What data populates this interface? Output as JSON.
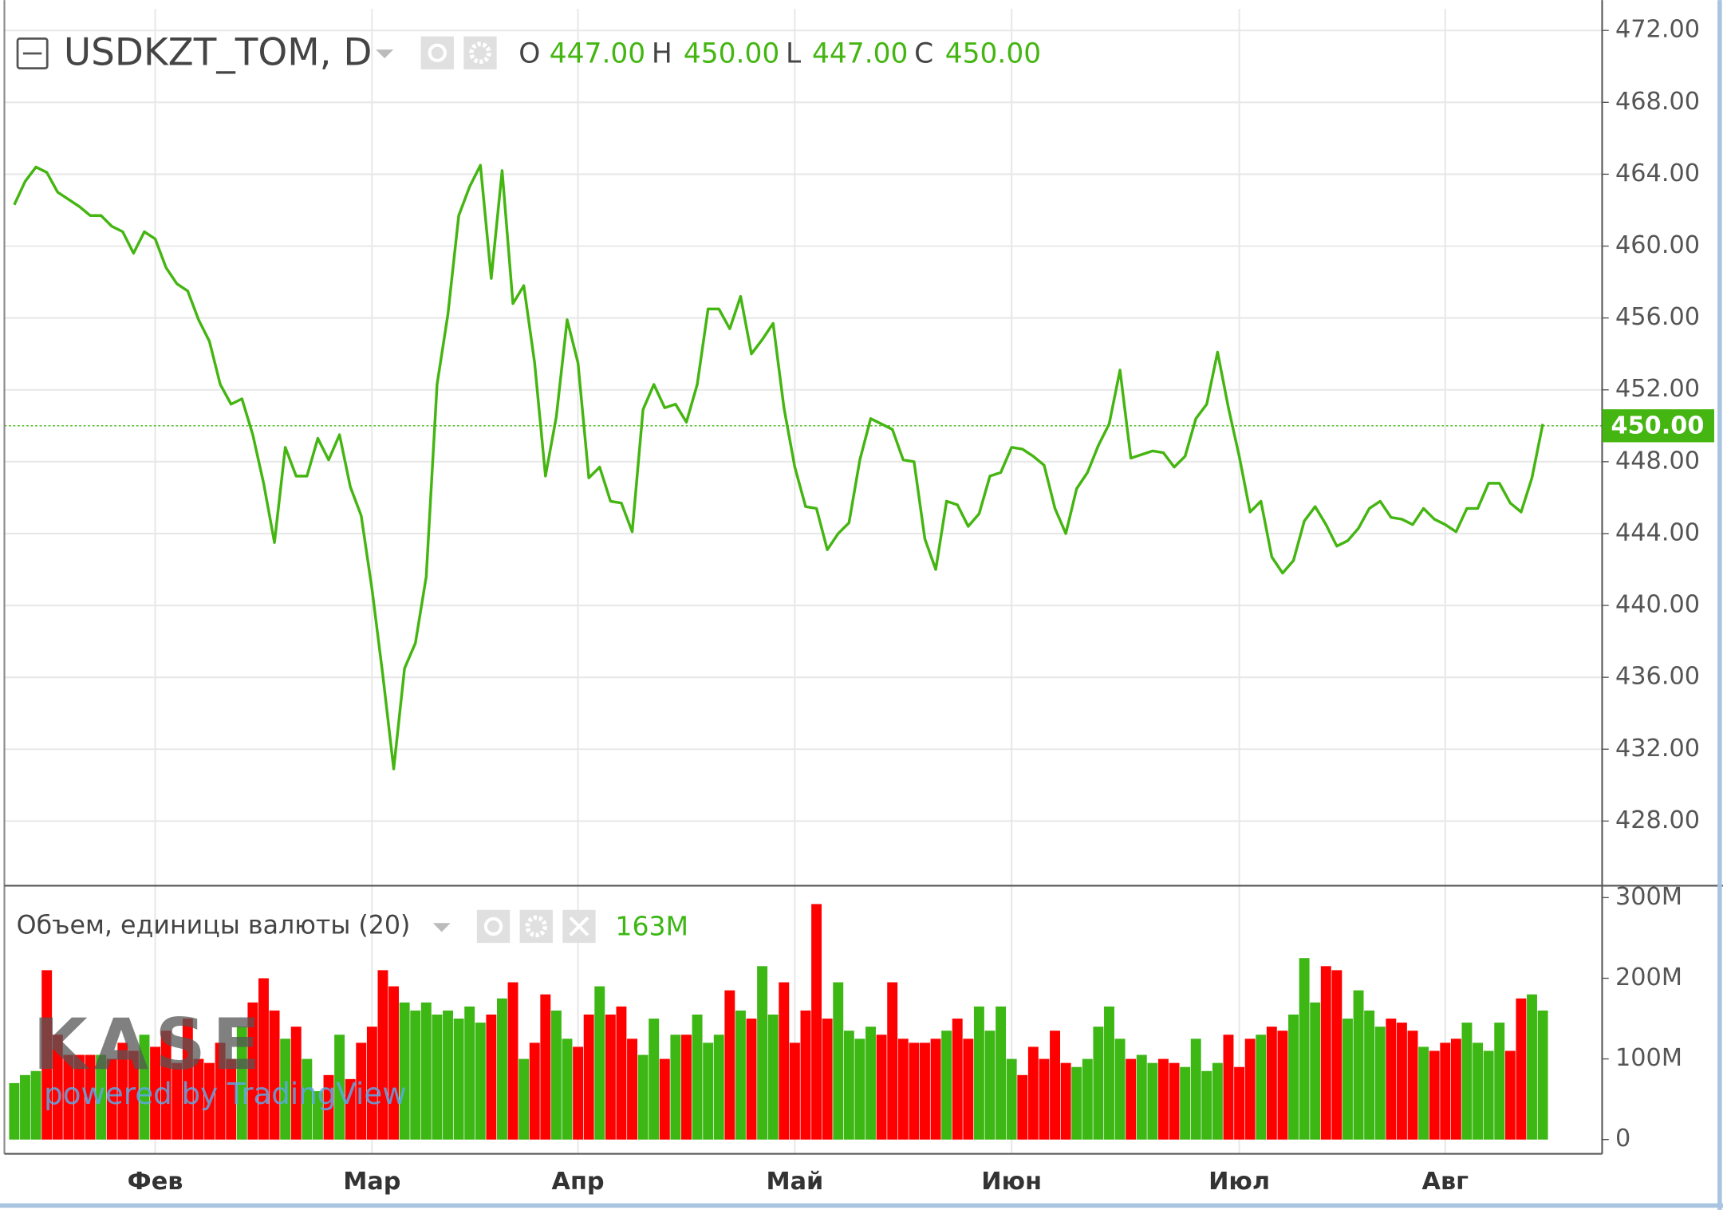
{
  "chart_data": [
    {
      "type": "line",
      "title": "USDKZT_TOM, D",
      "color": "#44b511",
      "ohlc": [
        {
          "name": "O",
          "value": 447,
          "label": "447.00"
        },
        {
          "name": "H",
          "value": 450,
          "label": "450.00"
        },
        {
          "name": "L",
          "value": 447,
          "label": "447.00"
        },
        {
          "name": "C",
          "value": 450,
          "label": "450.00"
        }
      ],
      "last_price": {
        "value": 450,
        "label": "450.00"
      },
      "values": [
        462.3,
        463.6,
        464.4,
        464.1,
        463.0,
        462.6,
        462.2,
        461.7,
        461.7,
        461.1,
        460.8,
        459.6,
        460.8,
        460.4,
        458.8,
        457.9,
        457.5,
        455.9,
        454.7,
        452.3,
        451.2,
        451.5,
        449.5,
        446.8,
        443.5,
        448.8,
        447.2,
        447.2,
        449.3,
        448.1,
        449.5,
        446.6,
        445.0,
        440.9,
        436.1,
        430.9,
        436.5,
        437.9,
        441.6,
        452.3,
        456.2,
        461.7,
        463.3,
        464.5,
        458.2,
        464.2,
        456.8,
        457.8,
        453.5,
        447.2,
        450.5,
        455.9,
        453.5,
        447.1,
        447.7,
        445.8,
        445.7,
        444.1,
        450.9,
        452.3,
        451.0,
        451.2,
        450.2,
        452.3,
        456.5,
        456.5,
        455.4,
        457.2,
        454.0,
        454.8,
        455.7,
        451.0,
        447.7,
        445.5,
        445.4,
        443.1,
        444.0,
        444.6,
        448.1,
        450.4,
        450.1,
        449.8,
        448.1,
        448.0,
        443.7,
        442.0,
        445.8,
        445.6,
        444.4,
        445.1,
        447.2,
        447.4,
        448.8,
        448.7,
        448.3,
        447.8,
        445.4,
        444.0,
        446.5,
        447.4,
        448.9,
        450.1,
        453.1,
        448.2,
        448.4,
        448.6,
        448.5,
        447.7,
        448.3,
        450.4,
        451.2,
        454.1,
        451.0,
        448.3,
        445.2,
        445.8,
        442.7,
        441.8,
        442.5,
        444.7,
        445.5,
        444.5,
        443.3,
        443.6,
        444.3,
        445.4,
        445.8,
        444.9,
        444.8,
        444.5,
        445.4,
        444.8,
        444.5,
        444.1,
        445.4,
        445.4,
        446.8,
        446.8,
        445.7,
        445.2,
        447.1,
        450.1
      ],
      "ylim": [
        424.4,
        473.2
      ],
      "yticks": [
        {
          "value": 428,
          "label": "428.00"
        },
        {
          "value": 432,
          "label": "432.00"
        },
        {
          "value": 436,
          "label": "436.00"
        },
        {
          "value": 440,
          "label": "440.00"
        },
        {
          "value": 444,
          "label": "444.00"
        },
        {
          "value": 448,
          "label": "448.00"
        },
        {
          "value": 452,
          "label": "452.00"
        },
        {
          "value": 456,
          "label": "456.00"
        },
        {
          "value": 460,
          "label": "460.00"
        },
        {
          "value": 464,
          "label": "464.00"
        },
        {
          "value": 468,
          "label": "468.00"
        },
        {
          "value": 472,
          "label": "472.00"
        }
      ],
      "grid": true
    },
    {
      "type": "bar",
      "title": "Объем, единицы валюты (20)",
      "up_color": "#3cb714",
      "down_color": "#ff0000",
      "last_value": {
        "value": 163,
        "label": "163M"
      },
      "watermark": {
        "logo": "KASE",
        "text": "powered by TradingView"
      },
      "categories": [
        null,
        null,
        null,
        null,
        null,
        null,
        null,
        null,
        null,
        null,
        null,
        null,
        null,
        "Фев",
        null,
        null,
        null,
        null,
        null,
        null,
        null,
        null,
        null,
        null,
        null,
        null,
        null,
        null,
        null,
        null,
        null,
        null,
        null,
        "Мар",
        null,
        null,
        null,
        null,
        null,
        null,
        null,
        null,
        null,
        null,
        null,
        null,
        null,
        null,
        null,
        null,
        null,
        null,
        "Апр",
        null,
        null,
        null,
        null,
        null,
        null,
        null,
        null,
        null,
        null,
        null,
        null,
        null,
        null,
        null,
        null,
        null,
        null,
        null,
        "Май",
        null,
        null,
        null,
        null,
        null,
        null,
        null,
        null,
        null,
        null,
        null,
        null,
        null,
        null,
        null,
        null,
        null,
        null,
        null,
        "Июн",
        null,
        null,
        null,
        null,
        null,
        null,
        null,
        null,
        null,
        null,
        null,
        null,
        null,
        null,
        null,
        null,
        null,
        null,
        null,
        null,
        "Июл",
        null,
        null,
        null,
        null,
        null,
        null,
        null,
        null,
        null,
        null,
        null,
        null,
        null,
        null,
        null,
        null,
        null,
        null,
        "Авг",
        null,
        null,
        null,
        null,
        null,
        null,
        null,
        null,
        null
      ],
      "values": [
        70,
        80,
        85,
        210,
        130,
        105,
        105,
        105,
        105,
        100,
        120,
        110,
        130,
        115,
        135,
        95,
        150,
        100,
        95,
        120,
        100,
        140,
        170,
        200,
        160,
        125,
        140,
        100,
        60,
        80,
        130,
        75,
        120,
        140,
        210,
        190,
        170,
        160,
        170,
        155,
        160,
        150,
        165,
        145,
        155,
        175,
        195,
        100,
        120,
        180,
        160,
        125,
        115,
        155,
        190,
        155,
        165,
        125,
        105,
        150,
        100,
        130,
        130,
        155,
        120,
        130,
        185,
        160,
        150,
        215,
        155,
        195,
        120,
        160,
        292,
        150,
        195,
        135,
        125,
        140,
        130,
        195,
        125,
        120,
        120,
        125,
        135,
        150,
        125,
        165,
        135,
        165,
        100,
        80,
        115,
        100,
        135,
        95,
        90,
        100,
        140,
        165,
        125,
        100,
        105,
        95,
        100,
        95,
        90,
        125,
        85,
        95,
        130,
        90,
        125,
        130,
        140,
        135,
        155,
        225,
        170,
        215,
        210,
        150,
        185,
        160,
        140,
        150,
        145,
        135,
        115,
        110,
        120,
        125,
        145,
        120,
        110,
        145,
        110,
        175,
        180,
        160
      ],
      "ylim": [
        -17.7,
        312
      ],
      "yticks": [
        0,
        {
          "value": 100,
          "label": "100M"
        },
        {
          "value": 200,
          "label": "200M"
        },
        {
          "value": 300,
          "label": "300M"
        }
      ]
    }
  ]
}
